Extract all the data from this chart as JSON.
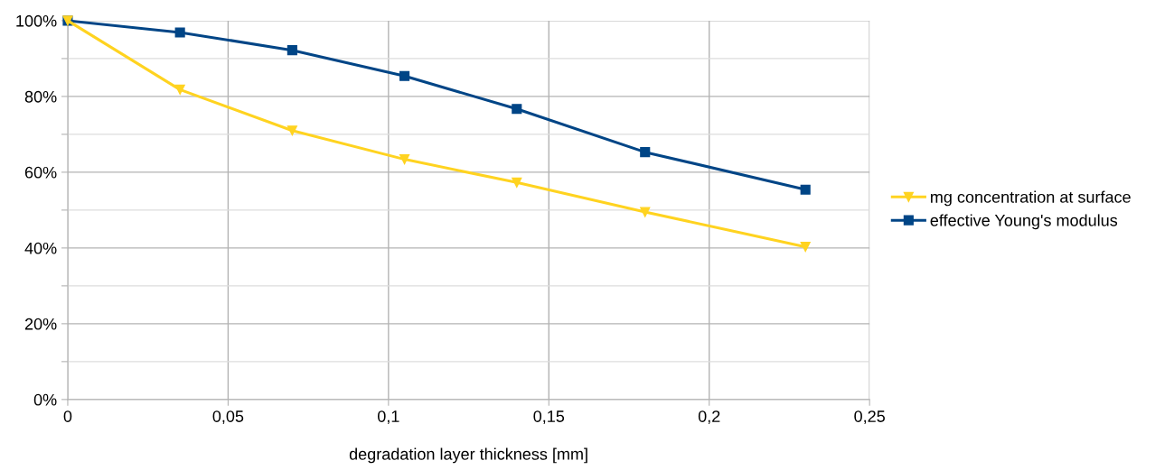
{
  "chart_data": {
    "type": "line",
    "xlabel": "degradation layer thickness [mm]",
    "x": [
      0,
      0.035,
      0.07,
      0.105,
      0.14,
      0.18,
      0.23
    ],
    "series": [
      {
        "name": "mg concentration at surface",
        "color": "#ffd320",
        "marker": "triangle",
        "values": [
          100,
          81.8,
          71.0,
          63.4,
          57.3,
          49.5,
          40.3
        ]
      },
      {
        "name": "effective Young's modulus",
        "color": "#004586",
        "marker": "square",
        "values": [
          100,
          96.9,
          92.2,
          85.4,
          76.7,
          65.3,
          55.4
        ]
      }
    ],
    "xlim": [
      0,
      0.25
    ],
    "xticks": [
      0,
      {
        "value": 0.05,
        "label": "0,05"
      },
      {
        "value": 0.1,
        "label": "0,1"
      },
      {
        "value": 0.15,
        "label": "0,15"
      },
      {
        "value": 0.2,
        "label": "0,2"
      },
      {
        "value": 0.25,
        "label": "0,25"
      }
    ],
    "ylim": [
      0,
      100
    ],
    "yticks": [
      {
        "value": 0,
        "label": "0%"
      },
      {
        "value": 10,
        "label": null
      },
      {
        "value": 20,
        "label": "20%"
      },
      {
        "value": 30,
        "label": null
      },
      {
        "value": 40,
        "label": "40%"
      },
      {
        "value": 50,
        "label": null
      },
      {
        "value": 60,
        "label": "60%"
      },
      {
        "value": 70,
        "label": null
      },
      {
        "value": 80,
        "label": "80%"
      },
      {
        "value": 90,
        "label": null
      },
      {
        "value": 100,
        "label": "100%"
      }
    ],
    "grid": true,
    "legend": "right",
    "line_style": "solid"
  }
}
